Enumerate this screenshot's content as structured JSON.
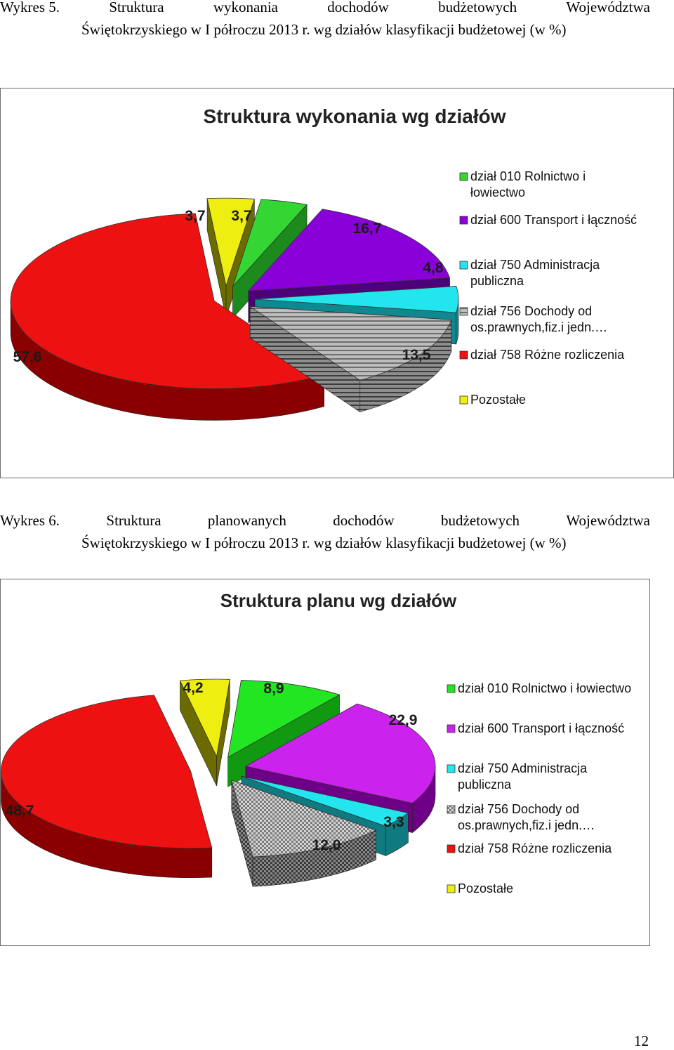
{
  "captions": [
    {
      "words": [
        "Wykres 5.",
        "Struktura",
        "wykonania",
        "dochodów",
        "budżetowych",
        "Województwa"
      ],
      "continuation": "Świętokrzyskiego  w I półroczu  2013  r.  wg  działów  klasyfikacji  budżetowej (w %)"
    },
    {
      "words": [
        "Wykres 6.",
        "Struktura",
        "planowanych",
        "dochodów",
        "budżetowych",
        "Województwa"
      ],
      "continuation": "Świętokrzyskiego  w I półroczu  2013  r.  wg  działów  klasyfikacji  budżetowej (w %)"
    }
  ],
  "page_number": "12",
  "chart_data": [
    {
      "type": "pie",
      "style": "3d-exploded",
      "title": "Struktura wykonania wg działów",
      "legend_position": "right",
      "categories": [
        "dział 010 Rolnictwo i łowiectwo",
        "dział 600 Transport i łączność",
        "dział 750 Administracja publiczna",
        "dział 756 Dochody od os.prawnych,fiz.i jedn.…",
        "dział 758 Różne rozliczenia",
        "Pozostałe"
      ],
      "legend_lines": [
        [
          "dział 010 Rolnictwo i",
          "łowiectwo"
        ],
        [
          "dział 600 Transport i łączność"
        ],
        [
          "dział 750 Administracja",
          "publiczna"
        ],
        [
          "dział 756 Dochody od",
          "os.prawnych,fiz.i jedn.…"
        ],
        [
          "dział 758 Różne rozliczenia"
        ],
        [
          "Pozostałe"
        ]
      ],
      "values": [
        3.7,
        16.7,
        4.8,
        13.5,
        57.6,
        3.7
      ],
      "value_labels": [
        "3,7",
        "16,7",
        "4,8",
        "13,5",
        "57,6",
        "3,7"
      ],
      "colors": [
        "#33d633",
        "#8a00d8",
        "#22e5ee",
        "#a8a8a8",
        "#ee1111",
        "#eeee11"
      ],
      "dark_colors": [
        "#1c8a1c",
        "#4e007a",
        "#0f8890",
        "#555555",
        "#8a0000",
        "#6b6b00"
      ],
      "patterns": [
        "",
        "",
        "",
        "stripes",
        "",
        ""
      ]
    },
    {
      "type": "pie",
      "style": "3d-exploded",
      "title": "Struktura planu wg działów",
      "legend_position": "right",
      "categories": [
        "dział 010 Rolnictwo i łowiectwo",
        "dział 600 Transport i łączność",
        "dział 750 Administracja publiczna",
        "dział 756 Dochody od os.prawnych,fiz.i jedn.…",
        "dział 758 Różne rozliczenia",
        "Pozostałe"
      ],
      "legend_lines": [
        [
          "dział 010 Rolnictwo i łowiectwo"
        ],
        [
          "dział 600 Transport i łączność"
        ],
        [
          "dział 750 Administracja",
          "publiczna"
        ],
        [
          "dział 756 Dochody od",
          "os.prawnych,fiz.i jedn.…"
        ],
        [
          "dział 758 Różne rozliczenia"
        ],
        [
          "Pozostałe"
        ]
      ],
      "values": [
        8.9,
        22.9,
        3.3,
        12.0,
        48.7,
        4.2
      ],
      "value_labels": [
        "8,9",
        "22,9",
        "3,3",
        "12,0",
        "48,7",
        "4,2"
      ],
      "colors": [
        "#22e622",
        "#cc22ee",
        "#22e5ee",
        "#a8a8a8",
        "#ee1111",
        "#eeee11"
      ],
      "dark_colors": [
        "#119911",
        "#6e0088",
        "#0f7a80",
        "#555555",
        "#8a0000",
        "#6b6b00"
      ],
      "patterns": [
        "",
        "",
        "",
        "checker",
        "",
        ""
      ]
    }
  ]
}
